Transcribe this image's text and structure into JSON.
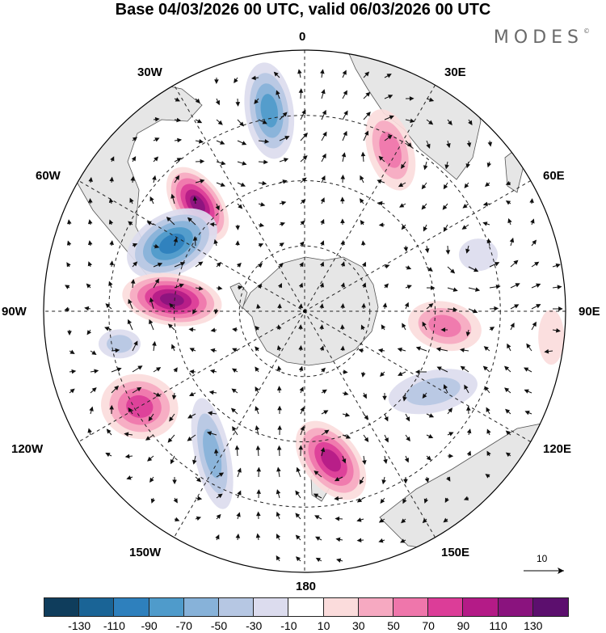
{
  "title": "Base 04/03/2026 00 UTC, valid 06/03/2026 00 UTC",
  "brand": "MODES",
  "brand_mark": "©",
  "longitude_labels": {
    "lon_0": "0",
    "lon_30e": "30E",
    "lon_60e": "60E",
    "lon_90e": "90E",
    "lon_120e": "120E",
    "lon_150e": "150E",
    "lon_180": "180",
    "lon_150w": "150W",
    "lon_120w": "120W",
    "lon_90w": "90W",
    "lon_60w": "60W",
    "lon_30w": "30W"
  },
  "reference_vector": {
    "label": "10"
  },
  "colorbar": {
    "ticks": [
      "-130",
      "-110",
      "-90",
      "-70",
      "-50",
      "-30",
      "-10",
      "10",
      "30",
      "50",
      "70",
      "90",
      "110",
      "130"
    ],
    "colors": [
      "#0f3d5c",
      "#1a6496",
      "#2e80bd",
      "#4f9bcb",
      "#87b2d9",
      "#b6c7e3",
      "#dcdcee",
      "#ffffff",
      "#fbdcdc",
      "#f6a9c1",
      "#ef76ab",
      "#dc3d98",
      "#b41b87",
      "#8a137e",
      "#5c0f6e"
    ]
  },
  "colors": {
    "land": "#e6e6e6",
    "neg_1": "#dcdcee",
    "neg_2": "#b6c7e3",
    "neg_3": "#87b2d9",
    "neg_4": "#4f9bcb",
    "neg_5": "#2e80bd",
    "pos_1": "#fbdcdc",
    "pos_2": "#f6a9c1",
    "pos_3": "#ef76ab",
    "pos_4": "#dc3d98",
    "pos_5": "#b41b87",
    "pos_6": "#8a137e"
  },
  "anomaly_centers": [
    {
      "id": "a1",
      "value": 130,
      "lon": -45,
      "dist": 0.58
    },
    {
      "id": "a2",
      "value": -90,
      "lon": -10,
      "dist": 0.78
    },
    {
      "id": "a3",
      "value": 70,
      "lon": 28,
      "dist": 0.7
    },
    {
      "id": "a4",
      "value": -110,
      "lon": -63,
      "dist": 0.57
    },
    {
      "id": "a5",
      "value": 130,
      "lon": -85,
      "dist": 0.51
    },
    {
      "id": "a6",
      "value": -30,
      "lon": 72,
      "dist": 0.7
    },
    {
      "id": "a7",
      "value": 70,
      "lon": 96,
      "dist": 0.54
    },
    {
      "id": "a8",
      "value": -50,
      "lon": -100,
      "dist": 0.72
    },
    {
      "id": "a9",
      "value": 90,
      "lon": -120,
      "dist": 0.73
    },
    {
      "id": "a10",
      "value": -70,
      "lon": -147,
      "dist": 0.65
    },
    {
      "id": "a11",
      "value": 110,
      "lon": 170,
      "dist": 0.58
    },
    {
      "id": "a12",
      "value": -50,
      "lon": 122,
      "dist": 0.58
    },
    {
      "id": "a13",
      "value": 30,
      "lon": 96,
      "dist": 0.95
    }
  ]
}
